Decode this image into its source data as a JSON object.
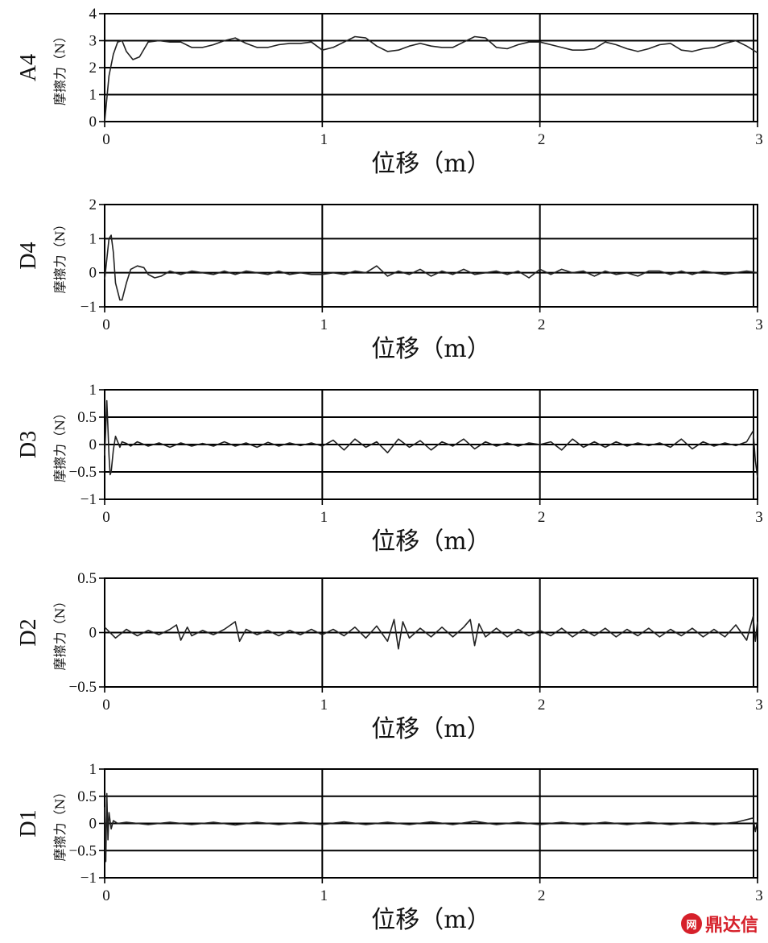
{
  "chart_data": [
    {
      "type": "line",
      "name": "A4",
      "ylabel": "摩擦力（N）",
      "xlabel": "位移（m）",
      "xlim": [
        0,
        3
      ],
      "ylim": [
        0,
        4
      ],
      "yticks": [
        0,
        1,
        2,
        3,
        4
      ],
      "ytick_labels": [
        "0",
        "1",
        "2",
        "3",
        "4"
      ],
      "xticks": [
        0,
        1,
        2,
        3
      ],
      "xtick_labels": [
        "0",
        "1",
        "2",
        "3"
      ],
      "grid": true,
      "series": [
        {
          "x": [
            0,
            0.02,
            0.04,
            0.06,
            0.08,
            0.1,
            0.13,
            0.16,
            0.2,
            0.25,
            0.3,
            0.35,
            0.4,
            0.45,
            0.5,
            0.55,
            0.6,
            0.65,
            0.7,
            0.75,
            0.8,
            0.85,
            0.9,
            0.95,
            1.0,
            1.05,
            1.1,
            1.15,
            1.2,
            1.25,
            1.3,
            1.35,
            1.4,
            1.45,
            1.5,
            1.55,
            1.6,
            1.65,
            1.7,
            1.75,
            1.8,
            1.85,
            1.9,
            1.95,
            2.0,
            2.05,
            2.1,
            2.15,
            2.2,
            2.25,
            2.3,
            2.35,
            2.4,
            2.45,
            2.5,
            2.55,
            2.6,
            2.65,
            2.7,
            2.75,
            2.8,
            2.85,
            2.9,
            2.95,
            3.0
          ],
          "y": [
            0.0,
            1.7,
            2.5,
            2.95,
            3.0,
            2.6,
            2.3,
            2.4,
            2.95,
            3.0,
            2.95,
            2.95,
            2.75,
            2.75,
            2.85,
            3.0,
            3.1,
            2.9,
            2.75,
            2.75,
            2.85,
            2.9,
            2.9,
            2.95,
            2.65,
            2.75,
            2.95,
            3.15,
            3.1,
            2.8,
            2.6,
            2.65,
            2.8,
            2.9,
            2.8,
            2.75,
            2.75,
            2.95,
            3.15,
            3.1,
            2.75,
            2.7,
            2.85,
            2.95,
            2.95,
            2.85,
            2.75,
            2.65,
            2.65,
            2.7,
            2.95,
            2.85,
            2.7,
            2.6,
            2.7,
            2.85,
            2.9,
            2.65,
            2.6,
            2.7,
            2.75,
            2.9,
            3.0,
            2.8,
            2.55
          ]
        }
      ]
    },
    {
      "type": "line",
      "name": "D4",
      "ylabel": "摩擦力（N）",
      "xlabel": "位移（m）",
      "xlim": [
        0,
        3
      ],
      "ylim": [
        -1,
        2
      ],
      "yticks": [
        -1,
        0,
        1,
        2
      ],
      "ytick_labels": [
        "−1",
        "0",
        "1",
        "2"
      ],
      "xticks": [
        0,
        1,
        2,
        3
      ],
      "xtick_labels": [
        "0",
        "1",
        "2",
        "3"
      ],
      "grid": true,
      "series": [
        {
          "x": [
            0,
            0.01,
            0.02,
            0.03,
            0.04,
            0.05,
            0.07,
            0.08,
            0.1,
            0.12,
            0.15,
            0.18,
            0.2,
            0.23,
            0.26,
            0.3,
            0.35,
            0.4,
            0.45,
            0.5,
            0.55,
            0.6,
            0.65,
            0.7,
            0.75,
            0.8,
            0.85,
            0.9,
            0.95,
            1.0,
            1.05,
            1.1,
            1.15,
            1.2,
            1.25,
            1.3,
            1.35,
            1.4,
            1.45,
            1.5,
            1.55,
            1.6,
            1.65,
            1.7,
            1.75,
            1.8,
            1.85,
            1.9,
            1.95,
            2.0,
            2.05,
            2.1,
            2.15,
            2.2,
            2.25,
            2.3,
            2.35,
            2.4,
            2.45,
            2.5,
            2.55,
            2.6,
            2.65,
            2.7,
            2.75,
            2.8,
            2.85,
            2.9,
            2.95,
            3.0
          ],
          "y": [
            -0.2,
            0.4,
            1.0,
            1.1,
            0.6,
            -0.3,
            -0.8,
            -0.8,
            -0.3,
            0.1,
            0.2,
            0.15,
            -0.05,
            -0.15,
            -0.1,
            0.05,
            -0.05,
            0.05,
            0.0,
            -0.05,
            0.05,
            -0.05,
            0.05,
            0.0,
            -0.05,
            0.05,
            -0.05,
            0.0,
            -0.05,
            -0.05,
            0.0,
            -0.05,
            0.05,
            0.0,
            0.2,
            -0.1,
            0.05,
            -0.05,
            0.1,
            -0.1,
            0.05,
            -0.05,
            0.1,
            -0.05,
            0.0,
            0.05,
            -0.05,
            0.05,
            -0.15,
            0.1,
            -0.05,
            0.1,
            0.0,
            0.05,
            -0.1,
            0.05,
            -0.05,
            0.0,
            -0.1,
            0.05,
            0.05,
            -0.05,
            0.05,
            -0.05,
            0.05,
            0.0,
            -0.05,
            0.0,
            0.05,
            0.0
          ]
        }
      ]
    },
    {
      "type": "line",
      "name": "D3",
      "ylabel": "摩擦力（N）",
      "xlabel": "位移（m）",
      "xlim": [
        0,
        3
      ],
      "ylim": [
        -1,
        1
      ],
      "yticks": [
        -1,
        -0.5,
        0,
        0.5,
        1
      ],
      "ytick_labels": [
        "−1",
        "−0.5",
        "0",
        "0.5",
        "1"
      ],
      "xticks": [
        0,
        1,
        2,
        3
      ],
      "xtick_labels": [
        "0",
        "1",
        "2",
        "3"
      ],
      "grid": true,
      "series": [
        {
          "x": [
            0,
            0.005,
            0.01,
            0.015,
            0.02,
            0.025,
            0.03,
            0.04,
            0.05,
            0.06,
            0.07,
            0.08,
            0.1,
            0.12,
            0.15,
            0.2,
            0.25,
            0.3,
            0.35,
            0.4,
            0.45,
            0.5,
            0.55,
            0.6,
            0.65,
            0.7,
            0.75,
            0.8,
            0.85,
            0.9,
            0.95,
            1.0,
            1.05,
            1.1,
            1.15,
            1.2,
            1.25,
            1.3,
            1.35,
            1.4,
            1.45,
            1.5,
            1.55,
            1.6,
            1.65,
            1.7,
            1.75,
            1.8,
            1.85,
            1.9,
            1.95,
            2.0,
            2.05,
            2.1,
            2.15,
            2.2,
            2.25,
            2.3,
            2.35,
            2.4,
            2.45,
            2.5,
            2.55,
            2.6,
            2.65,
            2.7,
            2.75,
            2.8,
            2.85,
            2.9,
            2.95,
            2.98,
            2.99,
            3.0
          ],
          "y": [
            -0.2,
            0.3,
            0.8,
            0.3,
            -0.2,
            -0.55,
            -0.5,
            -0.1,
            0.15,
            0.05,
            -0.05,
            0.05,
            0.02,
            -0.03,
            0.05,
            -0.03,
            0.03,
            -0.05,
            0.03,
            -0.03,
            0.02,
            -0.03,
            0.05,
            -0.03,
            0.03,
            -0.05,
            0.04,
            -0.03,
            0.03,
            -0.02,
            0.03,
            -0.03,
            0.08,
            -0.1,
            0.1,
            -0.05,
            0.05,
            -0.15,
            0.1,
            -0.05,
            0.07,
            -0.1,
            0.05,
            -0.03,
            0.1,
            -0.08,
            0.05,
            -0.03,
            0.03,
            -0.03,
            0.03,
            0.0,
            0.05,
            -0.1,
            0.1,
            -0.05,
            0.05,
            -0.05,
            0.05,
            -0.03,
            0.03,
            -0.02,
            0.03,
            -0.05,
            0.1,
            -0.08,
            0.05,
            -0.03,
            0.03,
            -0.02,
            0.05,
            0.25,
            -0.3,
            -0.6
          ]
        }
      ]
    },
    {
      "type": "line",
      "name": "D2",
      "ylabel": "摩擦力（N）",
      "xlabel": "位移（m）",
      "xlim": [
        0,
        3
      ],
      "ylim": [
        -0.5,
        0.5
      ],
      "yticks": [
        -0.5,
        0,
        0.5
      ],
      "ytick_labels": [
        "−0.5",
        "0",
        "0.5"
      ],
      "xticks": [
        0,
        1,
        2,
        3
      ],
      "xtick_labels": [
        "0",
        "1",
        "2",
        "3"
      ],
      "grid": true,
      "series": [
        {
          "x": [
            0,
            0.05,
            0.1,
            0.15,
            0.2,
            0.25,
            0.3,
            0.33,
            0.35,
            0.38,
            0.4,
            0.45,
            0.5,
            0.55,
            0.6,
            0.62,
            0.65,
            0.7,
            0.75,
            0.8,
            0.85,
            0.9,
            0.95,
            1.0,
            1.05,
            1.1,
            1.15,
            1.2,
            1.25,
            1.3,
            1.33,
            1.35,
            1.37,
            1.4,
            1.45,
            1.5,
            1.55,
            1.6,
            1.65,
            1.68,
            1.7,
            1.72,
            1.75,
            1.8,
            1.85,
            1.9,
            1.95,
            2.0,
            2.05,
            2.1,
            2.15,
            2.2,
            2.25,
            2.3,
            2.35,
            2.4,
            2.45,
            2.5,
            2.55,
            2.6,
            2.65,
            2.7,
            2.75,
            2.8,
            2.85,
            2.9,
            2.95,
            2.98,
            2.99,
            3.0
          ],
          "y": [
            0.05,
            -0.05,
            0.03,
            -0.03,
            0.02,
            -0.02,
            0.03,
            0.07,
            -0.07,
            0.05,
            -0.03,
            0.02,
            -0.02,
            0.03,
            0.1,
            -0.08,
            0.03,
            -0.02,
            0.02,
            -0.03,
            0.02,
            -0.02,
            0.03,
            -0.02,
            0.03,
            -0.03,
            0.05,
            -0.05,
            0.06,
            -0.08,
            0.12,
            -0.15,
            0.1,
            -0.05,
            0.04,
            -0.04,
            0.05,
            -0.04,
            0.05,
            0.12,
            -0.12,
            0.08,
            -0.04,
            0.04,
            -0.04,
            0.03,
            -0.03,
            0.02,
            -0.03,
            0.04,
            -0.04,
            0.03,
            -0.03,
            0.04,
            -0.04,
            0.03,
            -0.03,
            0.04,
            -0.04,
            0.03,
            -0.03,
            0.04,
            -0.04,
            0.03,
            -0.04,
            0.07,
            -0.07,
            0.15,
            -0.08,
            0.1
          ]
        }
      ]
    },
    {
      "type": "line",
      "name": "D1",
      "ylabel": "摩擦力（N）",
      "xlabel": "位移（m）",
      "xlim": [
        0,
        3
      ],
      "ylim": [
        -1,
        1
      ],
      "yticks": [
        -1,
        -0.5,
        0,
        0.5,
        1
      ],
      "ytick_labels": [
        "−1",
        "−0.5",
        "0",
        "0.5",
        "1"
      ],
      "xticks": [
        0,
        1,
        2,
        3
      ],
      "xtick_labels": [
        "0",
        "1",
        "2",
        "3"
      ],
      "grid": true,
      "series": [
        {
          "x": [
            0,
            0.005,
            0.01,
            0.015,
            0.02,
            0.03,
            0.04,
            0.06,
            0.1,
            0.2,
            0.3,
            0.4,
            0.5,
            0.6,
            0.7,
            0.8,
            0.9,
            1.0,
            1.1,
            1.2,
            1.3,
            1.4,
            1.5,
            1.6,
            1.7,
            1.8,
            1.9,
            2.0,
            2.1,
            2.2,
            2.3,
            2.4,
            2.5,
            2.6,
            2.7,
            2.8,
            2.9,
            2.98,
            2.99,
            3.0
          ],
          "y": [
            0.3,
            -0.7,
            0.55,
            -0.3,
            0.2,
            -0.1,
            0.05,
            0.0,
            0.02,
            -0.02,
            0.02,
            -0.02,
            0.02,
            -0.03,
            0.02,
            -0.02,
            0.02,
            -0.02,
            0.03,
            -0.02,
            0.02,
            -0.02,
            0.03,
            -0.02,
            0.04,
            -0.02,
            0.02,
            -0.02,
            0.02,
            -0.02,
            0.02,
            -0.02,
            0.02,
            -0.02,
            0.02,
            -0.02,
            0.02,
            0.1,
            -0.15,
            0.05
          ]
        }
      ]
    }
  ],
  "watermark": {
    "text": "鼎达信"
  }
}
